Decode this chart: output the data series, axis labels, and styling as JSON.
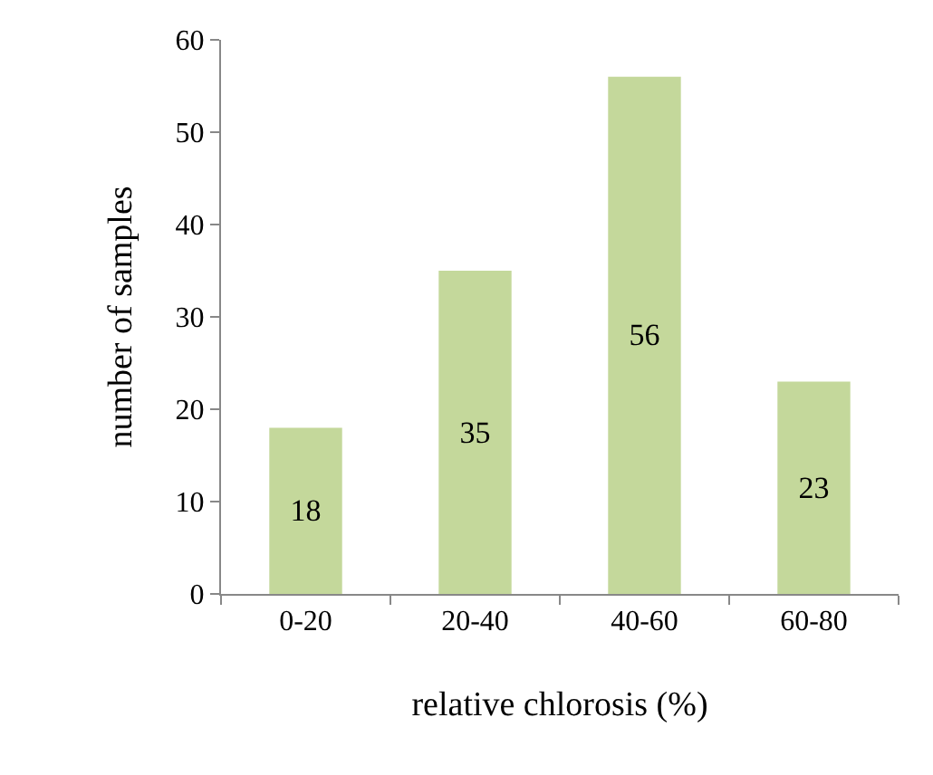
{
  "chart_data": {
    "type": "bar",
    "categories": [
      "0-20",
      "20-40",
      "40-60",
      "60-80"
    ],
    "values": [
      18,
      35,
      56,
      23
    ],
    "color": "#c4d89b",
    "xlabel": "relative chlorosis (%)",
    "ylabel": "number of samples",
    "ylim": [
      0,
      60
    ],
    "yticks": [
      0,
      10,
      20,
      30,
      40,
      50,
      60
    ],
    "data_labels": true
  }
}
